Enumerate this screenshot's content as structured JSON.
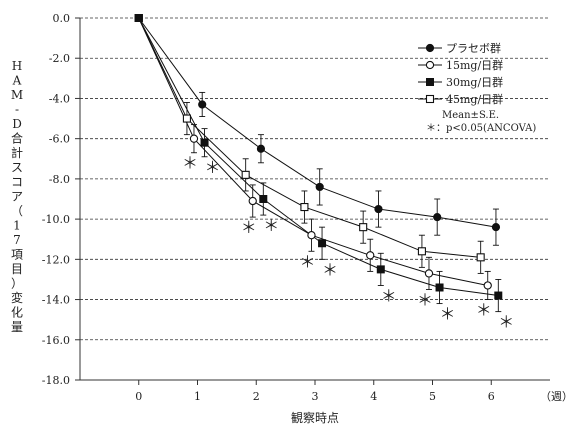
{
  "chart_data": {
    "type": "line",
    "x_ticks": [
      0,
      1,
      2,
      3,
      4,
      5,
      6
    ],
    "x_unit": "（週）",
    "xlabel": "観察時点",
    "ylabel": "HAM-D合計スコア（17項目）変化量",
    "ylim": [
      -18.0,
      0.0
    ],
    "y_ticks": [
      "0.0",
      "-2.0",
      "-4.0",
      "-6.0",
      "-8.0",
      "-10.0",
      "-12.0",
      "-14.0",
      "-16.0",
      "-18.0"
    ],
    "grid": true,
    "legend_position": "top-right",
    "series": [
      {
        "name": "プラセボ群",
        "marker": "filled-circle",
        "x": [
          0,
          1,
          2,
          3,
          4,
          5,
          6
        ],
        "y": [
          0.0,
          -4.3,
          -6.5,
          -8.4,
          -9.5,
          -9.9,
          -10.4
        ],
        "error": [
          0,
          0.6,
          0.7,
          0.9,
          0.9,
          0.9,
          0.9
        ]
      },
      {
        "name": "15mg/日群",
        "marker": "open-circle",
        "x": [
          0,
          1,
          2,
          3,
          4,
          5,
          6
        ],
        "y": [
          0.0,
          -6.0,
          -9.1,
          -10.8,
          -11.8,
          -12.7,
          -13.3
        ],
        "error": [
          0,
          0.7,
          0.8,
          0.8,
          0.8,
          0.8,
          0.7
        ]
      },
      {
        "name": "30mg/日群",
        "marker": "filled-square",
        "x": [
          0,
          1,
          2,
          3,
          4,
          5,
          6
        ],
        "y": [
          0.0,
          -6.2,
          -9.0,
          -11.2,
          -12.5,
          -13.4,
          -13.8
        ],
        "error": [
          0,
          0.7,
          0.8,
          0.8,
          0.8,
          0.8,
          0.8
        ]
      },
      {
        "name": "45mg/日群",
        "marker": "open-square",
        "x": [
          0,
          1,
          2,
          3,
          4,
          5,
          6
        ],
        "y": [
          0.0,
          -5.0,
          -7.8,
          -9.4,
          -10.4,
          -11.6,
          -11.9
        ],
        "error": [
          0,
          0.8,
          0.8,
          0.8,
          0.8,
          0.8,
          0.8
        ]
      }
    ],
    "annotations": {
      "stats_label": "Mean±S.E.",
      "significance_label": "＊：p<0.05(ANCOVA)",
      "significance_marker": "＊",
      "significant_points": [
        {
          "series": "15mg/日群",
          "x": 1
        },
        {
          "series": "30mg/日群",
          "x": 1
        },
        {
          "series": "15mg/日群",
          "x": 2
        },
        {
          "series": "30mg/日群",
          "x": 2
        },
        {
          "series": "15mg/日群",
          "x": 3
        },
        {
          "series": "30mg/日群",
          "x": 3
        },
        {
          "series": "30mg/日群",
          "x": 4
        },
        {
          "series": "15mg/日群",
          "x": 5
        },
        {
          "series": "30mg/日群",
          "x": 5
        },
        {
          "series": "15mg/日群",
          "x": 6
        },
        {
          "series": "30mg/日群",
          "x": 6
        }
      ]
    }
  }
}
